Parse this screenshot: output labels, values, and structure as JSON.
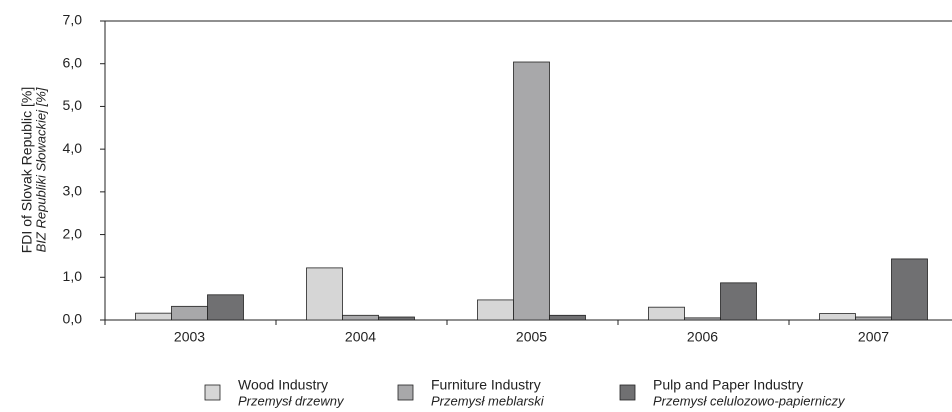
{
  "chart_data": {
    "type": "bar",
    "ylabel": "FDI of Slovak Republic [%]",
    "ylabel_alt": "BIZ Republiki Słowackiej [%]",
    "categories": [
      "2003",
      "2004",
      "2005",
      "2006",
      "2007"
    ],
    "series": [
      {
        "name": "Wood Industry",
        "name_alt": "Przemysł drzewny",
        "color": "#d6d6d6",
        "values": [
          0.16,
          1.22,
          0.47,
          0.3,
          0.15
        ]
      },
      {
        "name": "Furniture Industry",
        "name_alt": "Przemysł meblarski",
        "color": "#a8a8aa",
        "values": [
          0.32,
          0.11,
          6.04,
          0.05,
          0.07
        ]
      },
      {
        "name": "Pulp and Paper Industry",
        "name_alt": "Przemysł celulozowo-papierniczy",
        "color": "#707072",
        "values": [
          0.59,
          0.07,
          0.11,
          0.87,
          1.43
        ]
      }
    ],
    "ylim": [
      0,
      7
    ],
    "yticks": [
      {
        "value": 0,
        "label": "0,0"
      },
      {
        "value": 1,
        "label": "1,0"
      },
      {
        "value": 2,
        "label": "2,0"
      },
      {
        "value": 3,
        "label": "3,0"
      },
      {
        "value": 4,
        "label": "4,0"
      },
      {
        "value": 5,
        "label": "5,0"
      },
      {
        "value": 6,
        "label": "6,0"
      },
      {
        "value": 7,
        "label": "7,0"
      }
    ],
    "grid": false
  }
}
